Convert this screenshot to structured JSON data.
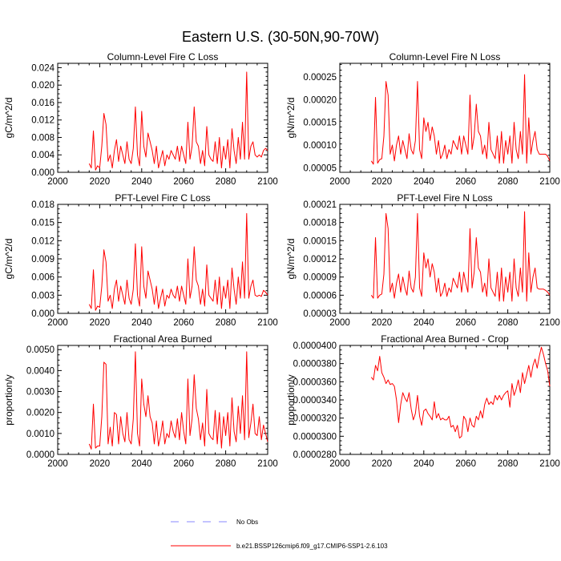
{
  "figure": {
    "title": "Eastern U.S. (30-50N,90-70W)",
    "legend": [
      {
        "label": "No Obs",
        "style": "dashed",
        "color": "#8a8aff"
      },
      {
        "label": "b.e21.BSSP126cmip6.f09_g17.CMIP6-SSP1-2.6.103",
        "style": "solid",
        "color": "#ff0000"
      }
    ],
    "line_color": "#ff0000"
  },
  "chart_data": [
    {
      "type": "line",
      "title": "Column-Level Fire C Loss",
      "ylabel": "gC/m^2/d",
      "xlim": [
        2000,
        2100
      ],
      "ylim": [
        0,
        0.025
      ],
      "xticks": [
        2000,
        2020,
        2040,
        2060,
        2080,
        2100
      ],
      "xticklabels": [
        "2000",
        "2020",
        "2040",
        "2060",
        "2080",
        "2100"
      ],
      "yticks": [
        0,
        0.004,
        0.008,
        0.012,
        0.016,
        0.02,
        0.024
      ],
      "yticklabels": [
        "0.000",
        "0.004",
        "0.008",
        "0.012",
        "0.016",
        "0.020",
        "0.024"
      ],
      "series": [
        {
          "name": "b.e21.BSSP126cmip6.f09_g17.CMIP6-SSP1-2.6.103",
          "x_start": 2015,
          "values": [
            0.002,
            0.001,
            0.0095,
            0.0005,
            0.0015,
            0.001,
            0.006,
            0.0135,
            0.011,
            0.0025,
            0.004,
            0.001,
            0.005,
            0.0075,
            0.0025,
            0.006,
            0.004,
            0.002,
            0.007,
            0.003,
            0.002,
            0.0055,
            0.015,
            0.004,
            0.0015,
            0.014,
            0.006,
            0.0035,
            0.009,
            0.007,
            0.005,
            0.002,
            0.006,
            0.001,
            0.003,
            0.005,
            0.0015,
            0.004,
            0.003,
            0.005,
            0.004,
            0.003,
            0.006,
            0.0025,
            0.006,
            0.004,
            0.002,
            0.0115,
            0.003,
            0.006,
            0.015,
            0.007,
            0.006,
            0.002,
            0.005,
            0.0015,
            0.0105,
            0.004,
            0.003,
            0.0025,
            0.007,
            0.002,
            0.008,
            0.001,
            0.006,
            0.003,
            0.0075,
            0.001,
            0.01,
            0.005,
            0.002,
            0.008,
            0.003,
            0.0115,
            0.003,
            0.023,
            0.003,
            0.006,
            0.007,
            0.004,
            0.0035,
            0.004,
            0.0035,
            0.005,
            0.0055,
            0.005
          ]
        }
      ]
    },
    {
      "type": "line",
      "title": "Column-Level Fire N Loss",
      "ylabel": "gN/m^2/d",
      "xlim": [
        2000,
        2100
      ],
      "ylim": [
        4e-05,
        0.00028
      ],
      "xticks": [
        2000,
        2020,
        2040,
        2060,
        2080,
        2100
      ],
      "xticklabels": [
        "2000",
        "2020",
        "2040",
        "2060",
        "2080",
        "2100"
      ],
      "yticks": [
        5e-05,
        0.0001,
        0.00015,
        0.0002,
        0.00025
      ],
      "yticklabels": [
        "0.00005",
        "0.00010",
        "0.00015",
        "0.00020",
        "0.00025"
      ],
      "series": [
        {
          "name": "b.e21.BSSP126cmip6.f09_g17.CMIP6-SSP1-2.6.103",
          "x_start": 2015,
          "values": [
            6.5e-05,
            5.8e-05,
            0.000205,
            6e-05,
            6.8e-05,
            7e-05,
            0.00012,
            0.00024,
            0.00021,
            8e-05,
            0.0001,
            6.5e-05,
            0.0001,
            0.00012,
            8e-05,
            0.00011,
            9e-05,
            7e-05,
            0.000125,
            9e-05,
            8e-05,
            0.00011,
            0.00024,
            9e-05,
            7e-05,
            0.00016,
            0.00013,
            0.00015,
            0.00011,
            0.00014,
            0.00012,
            8e-05,
            0.00011,
            7e-05,
            8e-05,
            0.0001,
            7e-05,
            9e-05,
            8e-05,
            0.00011,
            0.0001,
            9e-05,
            0.00012,
            8e-05,
            0.00012,
            0.0001,
            8e-05,
            0.00021,
            9e-05,
            0.00012,
            0.00019,
            0.00013,
            0.00012,
            8e-05,
            0.0001,
            7e-05,
            0.00015,
            9e-05,
            8e-05,
            7e-05,
            0.00012,
            6e-05,
            0.00013,
            6e-05,
            0.00011,
            8e-05,
            0.00012,
            6e-05,
            0.00015,
            9e-05,
            7e-05,
            0.00013,
            8e-05,
            0.000255,
            6e-05,
            0.00016,
            8e-05,
            0.00011,
            0.00013,
            9e-05,
            8e-05,
            8e-05,
            8e-05,
            8e-05,
            7.5e-05,
            6.5e-05
          ]
        }
      ]
    },
    {
      "type": "line",
      "title": "PFT-Level Fire C Loss",
      "ylabel": "gC/m^2/d",
      "xlim": [
        2000,
        2100
      ],
      "ylim": [
        0,
        0.018
      ],
      "xticks": [
        2000,
        2020,
        2040,
        2060,
        2080,
        2100
      ],
      "xticklabels": [
        "2000",
        "2020",
        "2040",
        "2060",
        "2080",
        "2100"
      ],
      "yticks": [
        0,
        0.003,
        0.006,
        0.009,
        0.012,
        0.015,
        0.018
      ],
      "yticklabels": [
        "0.000",
        "0.003",
        "0.006",
        "0.009",
        "0.012",
        "0.015",
        "0.018"
      ],
      "series": [
        {
          "name": "b.e21.BSSP126cmip6.f09_g17.CMIP6-SSP1-2.6.103",
          "x_start": 2015,
          "values": [
            0.0015,
            0.0008,
            0.0072,
            0.0005,
            0.0012,
            0.001,
            0.0045,
            0.0105,
            0.0085,
            0.002,
            0.003,
            0.0008,
            0.004,
            0.0055,
            0.002,
            0.0045,
            0.003,
            0.0015,
            0.0055,
            0.0025,
            0.0015,
            0.004,
            0.0115,
            0.003,
            0.0012,
            0.011,
            0.0045,
            0.0025,
            0.007,
            0.0055,
            0.004,
            0.0015,
            0.0045,
            0.0008,
            0.0025,
            0.004,
            0.0012,
            0.003,
            0.0025,
            0.004,
            0.003,
            0.0025,
            0.0045,
            0.002,
            0.0045,
            0.003,
            0.0015,
            0.009,
            0.0025,
            0.0045,
            0.011,
            0.0055,
            0.0045,
            0.0015,
            0.004,
            0.0012,
            0.008,
            0.003,
            0.0025,
            0.002,
            0.0055,
            0.0015,
            0.006,
            0.0008,
            0.0045,
            0.0025,
            0.0055,
            0.0008,
            0.0075,
            0.004,
            0.0015,
            0.006,
            0.0025,
            0.0085,
            0.0025,
            0.0165,
            0.0025,
            0.0045,
            0.0055,
            0.003,
            0.0028,
            0.003,
            0.0028,
            0.0038,
            0.0035,
            0.003
          ]
        }
      ]
    },
    {
      "type": "line",
      "title": "PFT-Level Fire N Loss",
      "ylabel": "gN/m^2/d",
      "xlim": [
        2000,
        2100
      ],
      "ylim": [
        3e-05,
        0.00021
      ],
      "xticks": [
        2000,
        2020,
        2040,
        2060,
        2080,
        2100
      ],
      "xticklabels": [
        "2000",
        "2020",
        "2040",
        "2060",
        "2080",
        "2100"
      ],
      "yticks": [
        3e-05,
        6e-05,
        9e-05,
        0.00012,
        0.00015,
        0.00018,
        0.00021
      ],
      "yticklabels": [
        "0.00003",
        "0.00006",
        "0.00009",
        "0.00012",
        "0.00015",
        "0.00018",
        "0.00021"
      ],
      "series": [
        {
          "name": "b.e21.BSSP126cmip6.f09_g17.CMIP6-SSP1-2.6.103",
          "x_start": 2015,
          "values": [
            6e-05,
            5.5e-05,
            0.000155,
            5.5e-05,
            6e-05,
            6.2e-05,
            9.5e-05,
            0.000195,
            0.00017,
            6.5e-05,
            8e-05,
            5.5e-05,
            8e-05,
            9.5e-05,
            6.5e-05,
            9e-05,
            7.2e-05,
            6e-05,
            0.0001,
            7.2e-05,
            6.5e-05,
            9e-05,
            0.000195,
            7.2e-05,
            5.8e-05,
            0.00013,
            0.000105,
            0.00012,
            9e-05,
            0.000112,
            9.8e-05,
            6.5e-05,
            8.8e-05,
            5.8e-05,
            6.5e-05,
            8e-05,
            5.8e-05,
            7.2e-05,
            6.5e-05,
            8.8e-05,
            8e-05,
            7.2e-05,
            9.8e-05,
            6.5e-05,
            9.8e-05,
            8e-05,
            6.5e-05,
            0.00017,
            7.2e-05,
            9.8e-05,
            0.000155,
            0.000105,
            9.8e-05,
            6.5e-05,
            8e-05,
            5.8e-05,
            0.00012,
            7.2e-05,
            6.5e-05,
            5.8e-05,
            9.8e-05,
            5e-05,
            0.000105,
            5e-05,
            9e-05,
            6.5e-05,
            9.8e-05,
            5e-05,
            0.00012,
            7.2e-05,
            5.8e-05,
            0.000105,
            6.5e-05,
            0.000198,
            5e-05,
            0.00013,
            6.5e-05,
            9e-05,
            0.000105,
            7.2e-05,
            7e-05,
            7e-05,
            7e-05,
            6.8e-05,
            6.5e-05,
            6e-05
          ]
        }
      ]
    },
    {
      "type": "line",
      "title": "Fractional Area Burned",
      "ylabel": "proportion/y",
      "xlim": [
        2000,
        2100
      ],
      "ylim": [
        0,
        0.0052
      ],
      "xticks": [
        2000,
        2020,
        2040,
        2060,
        2080,
        2100
      ],
      "xticklabels": [
        "2000",
        "2020",
        "2040",
        "2060",
        "2080",
        "2100"
      ],
      "yticks": [
        0,
        0.001,
        0.002,
        0.003,
        0.004,
        0.005
      ],
      "yticklabels": [
        "0.0000",
        "0.0010",
        "0.0020",
        "0.0030",
        "0.0040",
        "0.0050"
      ],
      "series": [
        {
          "name": "b.e21.BSSP126cmip6.f09_g17.CMIP6-SSP1-2.6.103",
          "x_start": 2015,
          "values": [
            0.0005,
            0.00025,
            0.0024,
            0.0003,
            0.0004,
            0.0004,
            0.0018,
            0.0044,
            0.0043,
            0.0005,
            0.0013,
            0.0004,
            0.002,
            0.0019,
            0.0005,
            0.0018,
            0.001,
            0.0006,
            0.002,
            0.0007,
            0.0005,
            0.0017,
            0.0049,
            0.001,
            0.0004,
            0.0036,
            0.0024,
            0.0018,
            0.0028,
            0.0018,
            0.0015,
            0.0005,
            0.0016,
            0.0004,
            0.0009,
            0.0016,
            0.0005,
            0.001,
            0.0008,
            0.0016,
            0.0011,
            0.0008,
            0.0017,
            0.0007,
            0.002,
            0.0011,
            0.0005,
            0.0036,
            0.0009,
            0.0017,
            0.0038,
            0.0022,
            0.0017,
            0.0007,
            0.0015,
            0.0004,
            0.0031,
            0.001,
            0.0008,
            0.0007,
            0.0021,
            0.0005,
            0.002,
            0.0003,
            0.0018,
            0.0009,
            0.002,
            0.0004,
            0.0027,
            0.0011,
            0.0006,
            0.0023,
            0.001,
            0.0028,
            0.0007,
            0.0049,
            0.0008,
            0.0015,
            0.0024,
            0.001,
            0.0009,
            0.0018,
            0.0007,
            0.0014,
            0.001,
            0.0006
          ]
        }
      ]
    },
    {
      "type": "line",
      "title": "Fractional Area Burned - Crop",
      "ylabel": "proportion/y",
      "xlim": [
        2000,
        2100
      ],
      "ylim": [
        2.8e-05,
        4e-05
      ],
      "xticks": [
        2000,
        2020,
        2040,
        2060,
        2080,
        2100
      ],
      "xticklabels": [
        "2000",
        "2020",
        "2040",
        "2060",
        "2080",
        "2100"
      ],
      "yticks": [
        2.8e-05,
        3e-05,
        3.2e-05,
        3.4e-05,
        3.6e-05,
        3.8e-05,
        4e-05
      ],
      "yticklabels": [
        "0.0000280",
        "0.0000300",
        "0.0000320",
        "0.0000340",
        "0.0000360",
        "0.0000380",
        "0.0000400"
      ],
      "series": [
        {
          "name": "b.e21.BSSP126cmip6.f09_g17.CMIP6-SSP1-2.6.103",
          "x_start": 2015,
          "values": [
            3.65e-05,
            3.62e-05,
            3.78e-05,
            3.72e-05,
            3.88e-05,
            3.7e-05,
            3.65e-05,
            3.58e-05,
            3.62e-05,
            3.57e-05,
            3.58e-05,
            3.55e-05,
            3.4e-05,
            3.15e-05,
            3.35e-05,
            3.48e-05,
            3.42e-05,
            3.38e-05,
            3.48e-05,
            3.3e-05,
            3.18e-05,
            3.25e-05,
            3.45e-05,
            3.22e-05,
            3.12e-05,
            3.28e-05,
            3.3e-05,
            3.25e-05,
            3.22e-05,
            3.18e-05,
            3.38e-05,
            3.2e-05,
            3.25e-05,
            3.18e-05,
            3.2e-05,
            3.18e-05,
            3.18e-05,
            3.22e-05,
            3.1e-05,
            3.12e-05,
            3.05e-05,
            3.12e-05,
            2.98e-05,
            3e-05,
            3.22e-05,
            3.18e-05,
            3.05e-05,
            3.2e-05,
            3.12e-05,
            3.1e-05,
            3.22e-05,
            3.18e-05,
            3.28e-05,
            3.2e-05,
            3.35e-05,
            3.42e-05,
            3.35e-05,
            3.38e-05,
            3.35e-05,
            3.45e-05,
            3.4e-05,
            3.45e-05,
            3.4e-05,
            3.45e-05,
            3.48e-05,
            3.5e-05,
            3.32e-05,
            3.58e-05,
            3.45e-05,
            3.52e-05,
            3.62e-05,
            3.48e-05,
            3.7e-05,
            3.58e-05,
            3.68e-05,
            3.78e-05,
            3.65e-05,
            3.78e-05,
            3.85e-05,
            3.75e-05,
            3.88e-05,
            3.98e-05,
            3.9e-05,
            3.8e-05,
            3.72e-05,
            3.55e-05
          ]
        }
      ]
    }
  ]
}
